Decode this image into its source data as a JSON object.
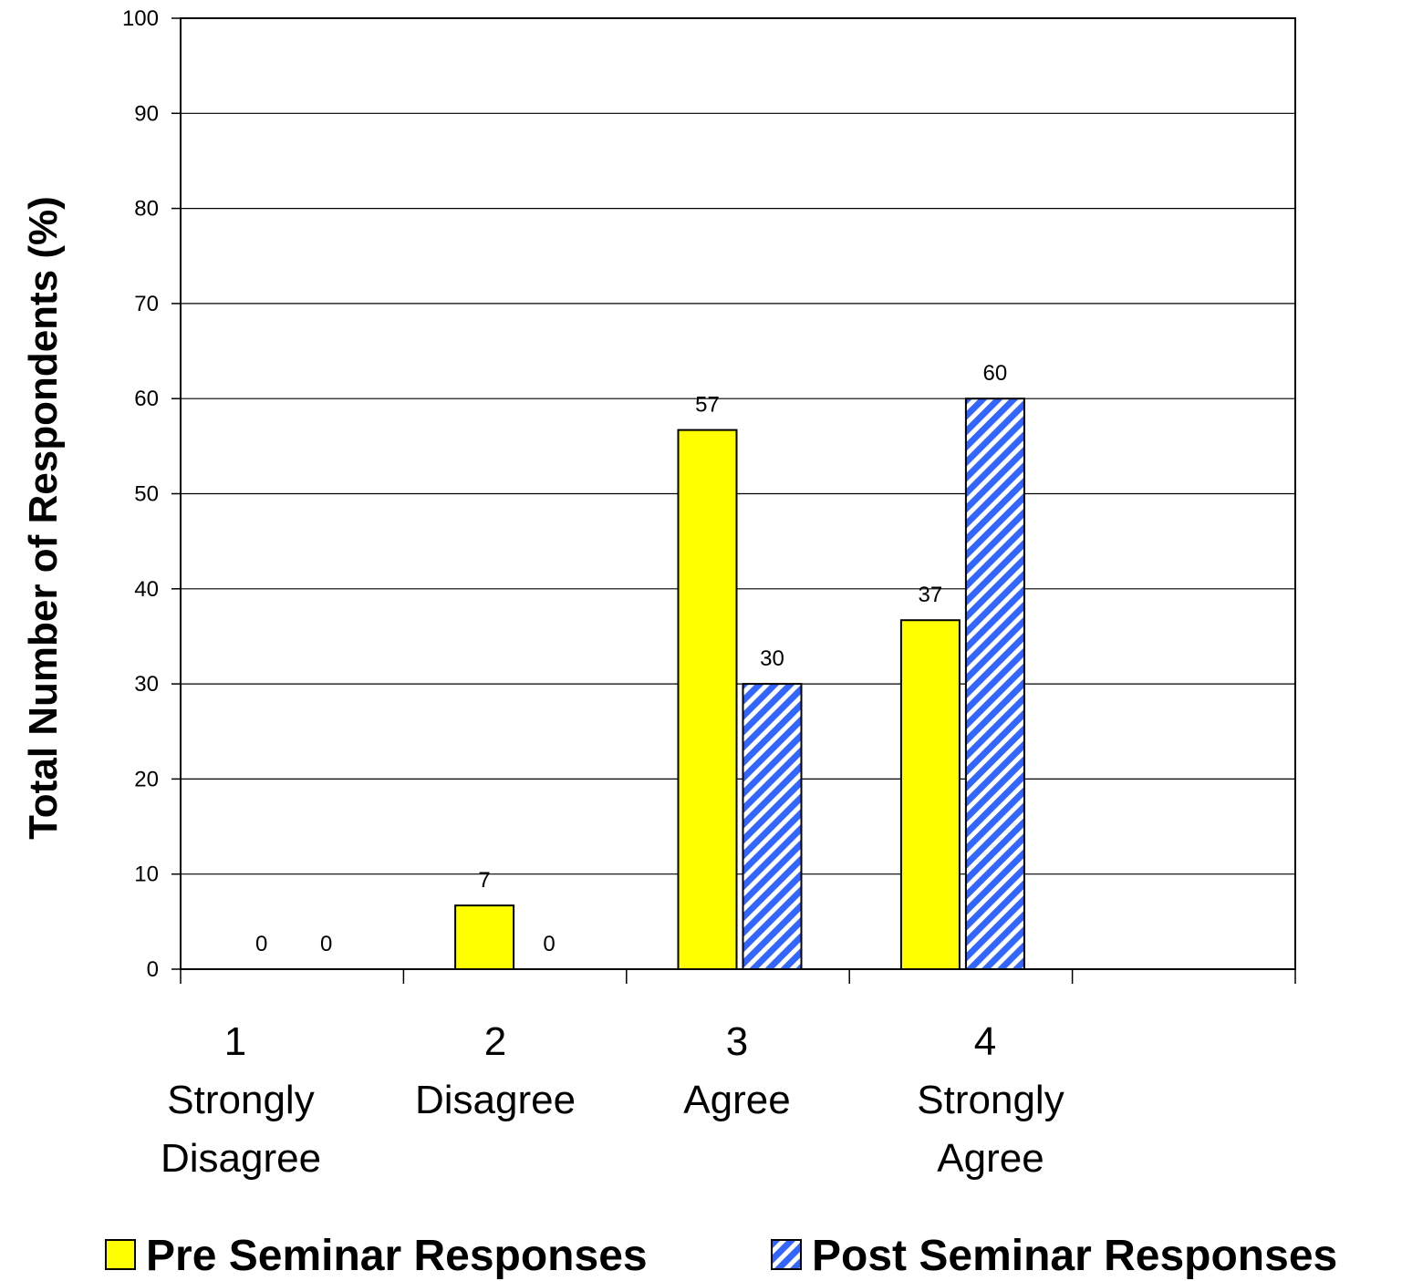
{
  "chart_data": {
    "type": "bar",
    "categories": [
      {
        "number": "1",
        "lines": [
          "Strongly",
          "Disagree"
        ]
      },
      {
        "number": "2",
        "lines": [
          "Disagree"
        ]
      },
      {
        "number": "3",
        "lines": [
          "Agree"
        ]
      },
      {
        "number": "4",
        "lines": [
          "Strongly",
          "Agree"
        ]
      },
      {
        "number": "",
        "lines": []
      }
    ],
    "series": [
      {
        "name": "Pre Seminar Responses",
        "values": [
          0,
          6.7,
          56.7,
          36.7,
          null
        ],
        "labels": [
          "0",
          "7",
          "57",
          "37",
          ""
        ],
        "color": "#ffff00",
        "pattern": "solid"
      },
      {
        "name": "Post Seminar Responses",
        "values": [
          0,
          0,
          30,
          60,
          null
        ],
        "labels": [
          "0",
          "0",
          "30",
          "60",
          ""
        ],
        "color": "#3366ff",
        "pattern": "diagonal-stripes"
      }
    ],
    "xlabel": "",
    "ylabel": "Total Number of Respondents (%)",
    "ylim": [
      0,
      100
    ],
    "yticks": [
      0,
      10,
      20,
      30,
      40,
      50,
      60,
      70,
      80,
      90,
      100
    ],
    "grid": true,
    "legend": "bottom"
  }
}
